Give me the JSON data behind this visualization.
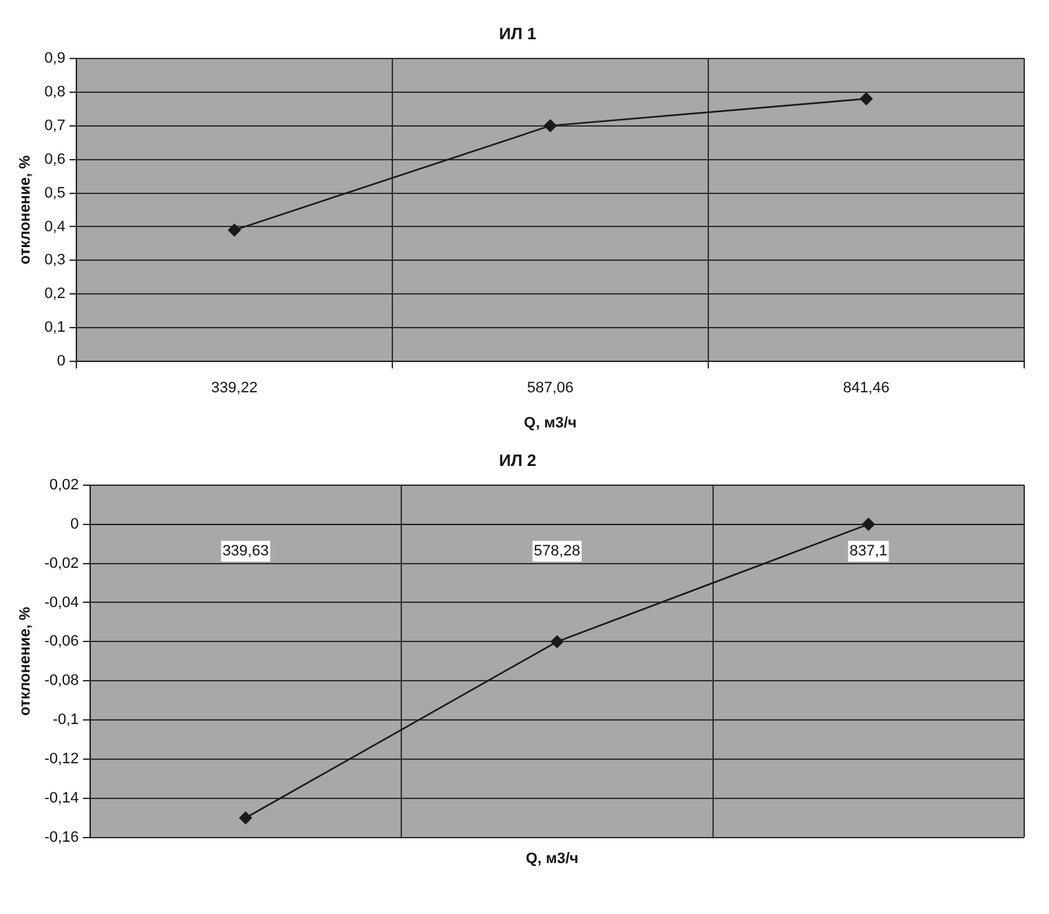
{
  "chart_data": [
    {
      "type": "line",
      "title": "ИЛ 1",
      "xlabel": "Q, м3/ч",
      "ylabel": "отклонение, %",
      "categories": [
        "339,22",
        "587,06",
        "841,46"
      ],
      "series": [
        {
          "color": "#1a1a1a",
          "values": [
            0.39,
            0.7,
            0.78
          ]
        }
      ],
      "ylim": [
        0,
        0.9
      ],
      "yticks": [
        0,
        {
          "value": 0.1,
          "label": "0,1"
        },
        {
          "value": 0.2,
          "label": "0,2"
        },
        {
          "value": 0.3,
          "label": "0,3"
        },
        {
          "value": 0.4,
          "label": "0,4"
        },
        {
          "value": 0.5,
          "label": "0,5"
        },
        {
          "value": 0.6,
          "label": "0,6"
        },
        {
          "value": 0.7,
          "label": "0,7"
        },
        {
          "value": 0.8,
          "label": "0,8"
        },
        {
          "value": 0.9,
          "label": "0,9"
        }
      ],
      "grid": true,
      "legend": false,
      "marker": "diamond",
      "line_style": "solid"
    },
    {
      "type": "line",
      "title": "ИЛ 2",
      "xlabel": "Q, м3/ч",
      "ylabel": "отклонение, %",
      "categories": [
        "339,63",
        "578,28",
        "837,1"
      ],
      "series": [
        {
          "color": "#1a1a1a",
          "values": [
            -0.15,
            -0.06,
            0.0
          ]
        }
      ],
      "ylim": [
        -0.16,
        0.02
      ],
      "yticks": [
        {
          "value": -0.16,
          "label": "-0,16"
        },
        {
          "value": -0.14,
          "label": "-0,14"
        },
        {
          "value": -0.12,
          "label": "-0,12"
        },
        {
          "value": -0.1,
          "label": "-0,1"
        },
        {
          "value": -0.08,
          "label": "-0,08"
        },
        {
          "value": -0.06,
          "label": "-0,06"
        },
        {
          "value": -0.04,
          "label": "-0,04"
        },
        {
          "value": -0.02,
          "label": "-0,02"
        },
        0,
        {
          "value": 0.02,
          "label": "0,02"
        }
      ],
      "grid": true,
      "legend": false,
      "marker": "diamond",
      "line_style": "solid"
    }
  ]
}
